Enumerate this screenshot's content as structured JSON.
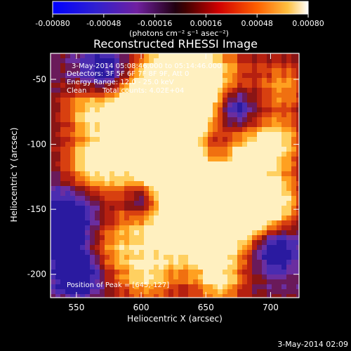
{
  "colorbar": {
    "ticks": [
      "-0.00080",
      "-0.00048",
      "-0.00016",
      "0.00016",
      "0.00048",
      "0.00080"
    ],
    "units": "(photons cm⁻² s⁻¹ asec⁻²)"
  },
  "title": "Reconstructed RHESSI Image",
  "annotations": {
    "time_range": "3-May-2014 05:08:46.000 to 05:14:46.000",
    "detectors": "Detectors: 3F 5F 6F 7F 8F 9F, Att 0",
    "energy": "Energy Range: 12.0 - 25.0 keV",
    "clean": "Clean",
    "total_counts": "Total counts: 4.02E+04",
    "peak": "Position of Peak = [645,-127]"
  },
  "axes": {
    "xlabel": "Heliocentric X (arcsec)",
    "ylabel": "Heliocentric Y (arcsec)",
    "xticks": [
      "550",
      "600",
      "650",
      "700"
    ],
    "yticks": [
      "-50",
      "-100",
      "-150",
      "-200"
    ]
  },
  "footer": {
    "timestamp": "3-May-2014 02:09"
  },
  "chart_data": {
    "type": "heatmap",
    "xlim": [
      530,
      722
    ],
    "ylim": [
      -218,
      -30
    ],
    "x_ticks": [
      550,
      600,
      650,
      700
    ],
    "y_ticks": [
      -50,
      -100,
      -150,
      -200
    ],
    "colorbar_range": [
      -0.0008,
      0.0008
    ],
    "colorbar_ticks": [
      -0.0008,
      -0.00048,
      -0.00016,
      0.00016,
      0.00048,
      0.0008
    ],
    "peak": [
      645,
      -127
    ],
    "colormap": [
      "#0000ff",
      "#4030c0",
      "#702080",
      "#000000",
      "#c00000",
      "#ff5000",
      "#ffa000",
      "#ffffff"
    ]
  }
}
